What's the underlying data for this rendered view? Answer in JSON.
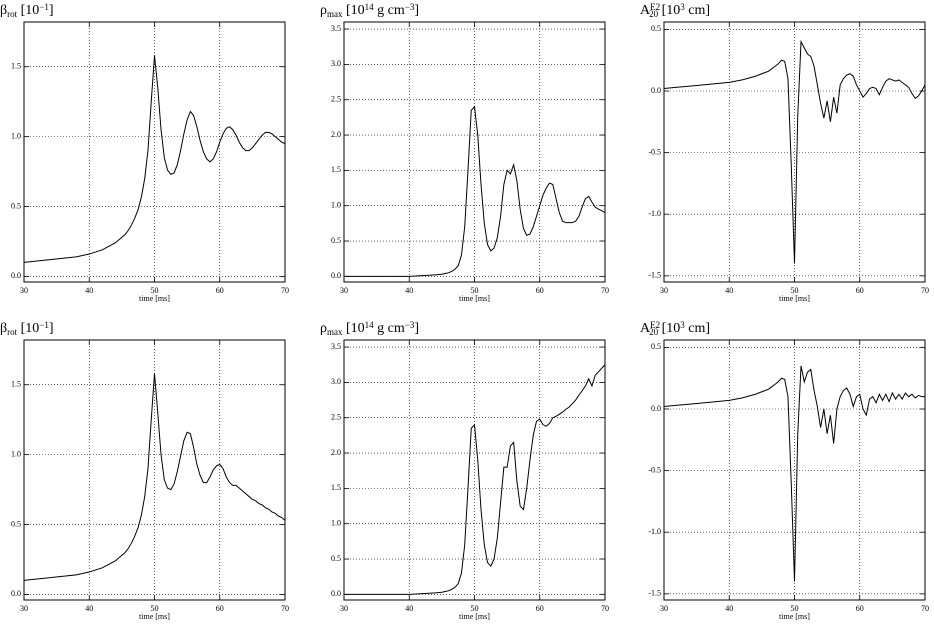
{
  "chart_data": [
    {
      "type": "line",
      "title": [
        {
          "text": "β"
        },
        {
          "text": "rot",
          "pos": "sub"
        },
        {
          "text": " [10"
        },
        {
          "text": "−1",
          "pos": "sup"
        },
        {
          "text": "]"
        }
      ],
      "xlabel": "time [ms]",
      "color": "#000000",
      "grid": true,
      "xlim": [
        30,
        70
      ],
      "xticks": [
        30,
        40,
        50,
        60,
        70
      ],
      "ylim": [
        -0.04,
        1.82
      ],
      "yticks": [
        {
          "value": 0,
          "label": "0.0"
        },
        0.5,
        {
          "value": 1,
          "label": "1.0"
        },
        1.5
      ],
      "x": [
        30,
        32,
        34,
        36,
        38,
        40,
        42,
        44,
        45,
        45.5,
        46,
        46.5,
        47,
        47.5,
        48,
        48.5,
        49,
        49.5,
        50,
        50.5,
        51,
        51.5,
        52,
        52.5,
        53,
        53.5,
        54,
        54.5,
        55,
        55.5,
        56,
        56.5,
        57,
        57.5,
        58,
        58.5,
        59,
        59.5,
        60,
        60.5,
        61,
        61.5,
        62,
        62.5,
        63,
        63.5,
        64,
        64.5,
        65,
        65.5,
        66,
        66.5,
        67,
        67.5,
        68,
        68.5,
        69,
        69.5,
        70
      ],
      "values": [
        0.1,
        0.11,
        0.12,
        0.13,
        0.14,
        0.16,
        0.19,
        0.24,
        0.28,
        0.3,
        0.33,
        0.37,
        0.42,
        0.48,
        0.57,
        0.7,
        0.9,
        1.25,
        1.58,
        1.35,
        1.05,
        0.85,
        0.76,
        0.73,
        0.74,
        0.8,
        0.9,
        1.02,
        1.12,
        1.18,
        1.15,
        1.07,
        0.97,
        0.89,
        0.84,
        0.82,
        0.84,
        0.89,
        0.96,
        1.02,
        1.06,
        1.07,
        1.05,
        1.01,
        0.96,
        0.92,
        0.9,
        0.9,
        0.92,
        0.95,
        0.98,
        1.01,
        1.03,
        1.03,
        1.02,
        1.0,
        0.98,
        0.96,
        0.95
      ]
    },
    {
      "type": "line",
      "title": [
        {
          "text": "ρ"
        },
        {
          "text": "max",
          "pos": "sub"
        },
        {
          "text": " [10"
        },
        {
          "text": "14",
          "pos": "sup"
        },
        {
          "text": " g cm"
        },
        {
          "text": "−3",
          "pos": "sup"
        },
        {
          "text": "]"
        }
      ],
      "xlabel": "time [ms]",
      "color": "#000000",
      "grid": true,
      "xlim": [
        30,
        70
      ],
      "xticks": [
        30,
        40,
        50,
        60,
        70
      ],
      "ylim": [
        -0.08,
        3.6
      ],
      "yticks": [
        {
          "value": 0,
          "label": "0.0"
        },
        0.5,
        {
          "value": 1,
          "label": "1.0"
        },
        1.5,
        {
          "value": 2,
          "label": "2.0"
        },
        2.5,
        {
          "value": 3,
          "label": "3.0"
        },
        3.5
      ],
      "x": [
        30,
        32,
        34,
        36,
        38,
        40,
        42,
        44,
        45,
        45.5,
        46,
        46.5,
        47,
        47.5,
        48,
        48.5,
        49,
        49.5,
        50,
        50.5,
        51,
        51.5,
        52,
        52.5,
        53,
        53.5,
        54,
        54.5,
        55,
        55.5,
        56,
        56.5,
        57,
        57.5,
        58,
        58.5,
        59,
        59.5,
        60,
        60.5,
        61,
        61.5,
        62,
        62.5,
        63,
        63.5,
        64,
        64.5,
        65,
        65.5,
        66,
        66.5,
        67,
        67.5,
        68,
        68.5,
        69,
        69.5,
        70
      ],
      "values": [
        0,
        0,
        0,
        0,
        0,
        0,
        0.01,
        0.02,
        0.03,
        0.04,
        0.05,
        0.07,
        0.1,
        0.15,
        0.3,
        0.7,
        1.5,
        2.35,
        2.4,
        2.0,
        1.3,
        0.75,
        0.45,
        0.36,
        0.4,
        0.55,
        0.85,
        1.3,
        1.5,
        1.45,
        1.58,
        1.35,
        0.95,
        0.68,
        0.58,
        0.6,
        0.7,
        0.85,
        1.0,
        1.15,
        1.25,
        1.32,
        1.3,
        1.1,
        0.9,
        0.78,
        0.76,
        0.76,
        0.76,
        0.78,
        0.85,
        0.98,
        1.1,
        1.13,
        1.05,
        0.98,
        0.95,
        0.93,
        0.9
      ]
    },
    {
      "type": "line",
      "title": [
        {
          "text": "A"
        },
        {
          "text": "E2",
          "pos": "sup"
        },
        {
          "text": "20",
          "pos": "sub"
        },
        {
          "text": " [10"
        },
        {
          "text": "3",
          "pos": "sup"
        },
        {
          "text": " cm]"
        }
      ],
      "xlabel": "time [ms]",
      "color": "#000000",
      "grid": true,
      "xlim": [
        30,
        70
      ],
      "xticks": [
        30,
        40,
        50,
        60,
        70
      ],
      "ylim": [
        -1.55,
        0.56
      ],
      "yticks": [
        -1.5,
        {
          "value": -1,
          "label": "-1.0"
        },
        -0.5,
        {
          "value": 0,
          "label": "0.0"
        },
        0.5
      ],
      "x": [
        30,
        32,
        34,
        36,
        38,
        40,
        42,
        44,
        45,
        45.5,
        46,
        46.5,
        47,
        47.5,
        48,
        48.5,
        49,
        49.5,
        50,
        50.5,
        51,
        51.5,
        52,
        52.5,
        53,
        53.5,
        54,
        54.5,
        55,
        55.5,
        56,
        56.5,
        57,
        57.5,
        58,
        58.5,
        59,
        59.5,
        60,
        60.5,
        61,
        61.5,
        62,
        62.5,
        63,
        63.5,
        64,
        64.5,
        65,
        65.5,
        66,
        66.5,
        67,
        67.5,
        68,
        68.5,
        69,
        69.5,
        70
      ],
      "values": [
        0.02,
        0.03,
        0.04,
        0.05,
        0.06,
        0.07,
        0.09,
        0.12,
        0.14,
        0.15,
        0.16,
        0.18,
        0.2,
        0.22,
        0.25,
        0.24,
        0.1,
        -0.6,
        -1.4,
        -0.2,
        0.4,
        0.35,
        0.3,
        0.28,
        0.2,
        0.05,
        -0.1,
        -0.22,
        -0.08,
        -0.25,
        -0.05,
        -0.18,
        0.05,
        0.1,
        0.13,
        0.14,
        0.12,
        0.05,
        0.0,
        -0.05,
        -0.02,
        0.02,
        0.03,
        0.02,
        -0.03,
        0.03,
        0.08,
        0.1,
        0.09,
        0.08,
        0.09,
        0.07,
        0.05,
        0.03,
        -0.02,
        -0.06,
        -0.04,
        0.0,
        0.05
      ]
    },
    {
      "type": "line",
      "title": [
        {
          "text": "β"
        },
        {
          "text": "rot",
          "pos": "sub"
        },
        {
          "text": " [10"
        },
        {
          "text": "−1",
          "pos": "sup"
        },
        {
          "text": "]"
        }
      ],
      "xlabel": "time [ms]",
      "color": "#000000",
      "grid": true,
      "xlim": [
        30,
        70
      ],
      "xticks": [
        30,
        40,
        50,
        60,
        70
      ],
      "ylim": [
        -0.04,
        1.82
      ],
      "yticks": [
        {
          "value": 0,
          "label": "0.0"
        },
        0.5,
        {
          "value": 1,
          "label": "1.0"
        },
        1.5
      ],
      "x": [
        30,
        32,
        34,
        36,
        38,
        40,
        42,
        44,
        45,
        45.5,
        46,
        46.5,
        47,
        47.5,
        48,
        48.5,
        49,
        49.5,
        50,
        50.5,
        51,
        51.5,
        52,
        52.5,
        53,
        53.5,
        54,
        54.5,
        55,
        55.5,
        56,
        56.5,
        57,
        57.5,
        58,
        58.5,
        59,
        59.5,
        60,
        60.5,
        61,
        61.5,
        62,
        62.5,
        63,
        63.5,
        64,
        64.5,
        65,
        65.5,
        66,
        66.5,
        67,
        67.5,
        68,
        68.5,
        69,
        69.5,
        70
      ],
      "values": [
        0.1,
        0.11,
        0.12,
        0.13,
        0.14,
        0.16,
        0.19,
        0.24,
        0.28,
        0.3,
        0.33,
        0.37,
        0.42,
        0.48,
        0.57,
        0.7,
        0.9,
        1.25,
        1.58,
        1.3,
        1.0,
        0.82,
        0.76,
        0.75,
        0.79,
        0.88,
        0.99,
        1.1,
        1.16,
        1.15,
        1.05,
        0.93,
        0.85,
        0.8,
        0.8,
        0.84,
        0.89,
        0.92,
        0.93,
        0.9,
        0.84,
        0.8,
        0.78,
        0.78,
        0.76,
        0.74,
        0.72,
        0.7,
        0.68,
        0.67,
        0.65,
        0.64,
        0.62,
        0.61,
        0.59,
        0.58,
        0.56,
        0.55,
        0.53
      ]
    },
    {
      "type": "line",
      "title": [
        {
          "text": "ρ"
        },
        {
          "text": "max",
          "pos": "sub"
        },
        {
          "text": " [10"
        },
        {
          "text": "14",
          "pos": "sup"
        },
        {
          "text": " g cm"
        },
        {
          "text": "−3",
          "pos": "sup"
        },
        {
          "text": "]"
        }
      ],
      "xlabel": "time [ms]",
      "color": "#000000",
      "grid": true,
      "xlim": [
        30,
        70
      ],
      "xticks": [
        30,
        40,
        50,
        60,
        70
      ],
      "ylim": [
        -0.08,
        3.6
      ],
      "yticks": [
        {
          "value": 0,
          "label": "0.0"
        },
        0.5,
        {
          "value": 1,
          "label": "1.0"
        },
        1.5,
        {
          "value": 2,
          "label": "2.0"
        },
        2.5,
        {
          "value": 3,
          "label": "3.0"
        },
        3.5
      ],
      "x": [
        30,
        32,
        34,
        36,
        38,
        40,
        42,
        44,
        45,
        45.5,
        46,
        46.5,
        47,
        47.5,
        48,
        48.5,
        49,
        49.5,
        50,
        50.5,
        51,
        51.5,
        52,
        52.5,
        53,
        53.5,
        54,
        54.5,
        55,
        55.5,
        56,
        56.5,
        57,
        57.5,
        58,
        58.5,
        59,
        59.5,
        60,
        60.5,
        61,
        61.5,
        62,
        62.5,
        63,
        63.5,
        64,
        64.5,
        65,
        65.5,
        66,
        66.5,
        67,
        67.5,
        68,
        68.5,
        69,
        69.5,
        70
      ],
      "values": [
        0,
        0,
        0,
        0,
        0,
        0,
        0.01,
        0.02,
        0.03,
        0.04,
        0.05,
        0.07,
        0.1,
        0.15,
        0.3,
        0.7,
        1.5,
        2.35,
        2.4,
        1.9,
        1.2,
        0.7,
        0.45,
        0.4,
        0.5,
        0.8,
        1.3,
        1.8,
        1.8,
        2.1,
        2.15,
        1.6,
        1.25,
        1.2,
        1.5,
        1.9,
        2.25,
        2.45,
        2.48,
        2.4,
        2.38,
        2.42,
        2.5,
        2.52,
        2.55,
        2.58,
        2.62,
        2.65,
        2.7,
        2.75,
        2.82,
        2.88,
        2.95,
        3.05,
        2.95,
        3.1,
        3.15,
        3.2,
        3.25
      ]
    },
    {
      "type": "line",
      "title": [
        {
          "text": "A"
        },
        {
          "text": "E2",
          "pos": "sup"
        },
        {
          "text": "20",
          "pos": "sub"
        },
        {
          "text": " [10"
        },
        {
          "text": "3",
          "pos": "sup"
        },
        {
          "text": " cm]"
        }
      ],
      "xlabel": "time [ms]",
      "color": "#000000",
      "grid": true,
      "xlim": [
        30,
        70
      ],
      "xticks": [
        30,
        40,
        50,
        60,
        70
      ],
      "ylim": [
        -1.55,
        0.56
      ],
      "yticks": [
        -1.5,
        {
          "value": -1,
          "label": "-1.0"
        },
        -0.5,
        {
          "value": 0,
          "label": "0.0"
        },
        0.5
      ],
      "x": [
        30,
        32,
        34,
        36,
        38,
        40,
        42,
        44,
        45,
        45.5,
        46,
        46.5,
        47,
        47.5,
        48,
        48.5,
        49,
        49.5,
        50,
        50.5,
        51,
        51.5,
        52,
        52.5,
        53,
        53.5,
        54,
        54.5,
        55,
        55.5,
        56,
        56.5,
        57,
        57.5,
        58,
        58.5,
        59,
        59.5,
        60,
        60.5,
        61,
        61.5,
        62,
        62.5,
        63,
        63.5,
        64,
        64.5,
        65,
        65.5,
        66,
        66.5,
        67,
        67.5,
        68,
        68.5,
        69,
        69.5,
        70
      ],
      "values": [
        0.02,
        0.03,
        0.04,
        0.05,
        0.06,
        0.07,
        0.09,
        0.12,
        0.14,
        0.15,
        0.16,
        0.18,
        0.2,
        0.22,
        0.25,
        0.24,
        0.1,
        -0.6,
        -1.4,
        -0.2,
        0.35,
        0.22,
        0.3,
        0.32,
        0.15,
        0.02,
        -0.15,
        0.0,
        -0.2,
        -0.05,
        -0.28,
        0.0,
        0.1,
        0.15,
        0.17,
        0.12,
        0.02,
        0.1,
        0.12,
        0.0,
        -0.05,
        0.08,
        0.1,
        0.05,
        0.12,
        0.07,
        0.12,
        0.06,
        0.13,
        0.08,
        0.12,
        0.08,
        0.13,
        0.1,
        0.12,
        0.09,
        0.11,
        0.1,
        0.1
      ]
    }
  ]
}
